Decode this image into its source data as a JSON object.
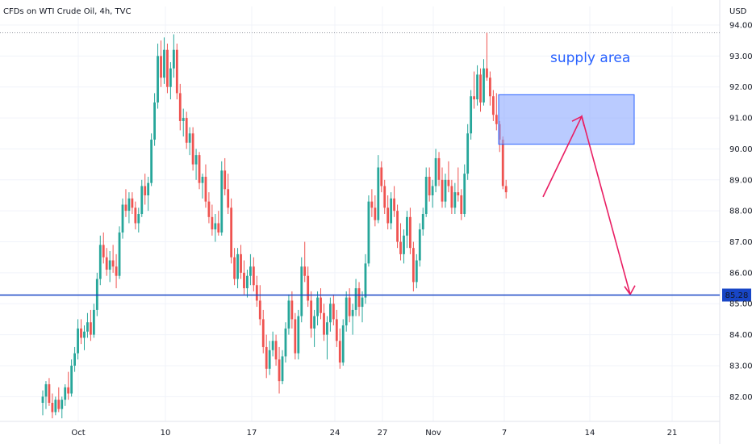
{
  "chart_data": {
    "type": "candlestick",
    "title": "CFDs on WTI Crude Oil, 4h, TVC",
    "currency": "USD",
    "ylim": [
      81.2,
      94.6
    ],
    "y_ticks": [
      82,
      83,
      84,
      85,
      86,
      87,
      88,
      89,
      90,
      91,
      92,
      93,
      94
    ],
    "y_tick_labels": [
      "82.00",
      "83.00",
      "84.00",
      "85.00",
      "86.00",
      "87.00",
      "88.00",
      "89.00",
      "90.00",
      "91.00",
      "92.00",
      "93.00",
      "94.00"
    ],
    "x_tick_labels": [
      "Oct",
      "10",
      "17",
      "24",
      "27",
      "Nov",
      "7",
      "14",
      "21"
    ],
    "grid": true,
    "colors": {
      "up": "#26a69a",
      "down": "#ef5350",
      "level": "#1846c6",
      "zone_fill": "#8ca9ff",
      "zone_border": "#2962ff",
      "arrow": "#e91e63",
      "text": "#131722",
      "annotation": "#2962ff"
    },
    "price_level": {
      "value": 85.28,
      "label": "85.28"
    },
    "high_marker": 93.75,
    "supply_zone": {
      "label": "supply area",
      "from": 90.15,
      "to": 91.75
    },
    "projection": [
      88.45,
      91.05,
      85.3
    ],
    "candles": [
      [
        81.8,
        82.2,
        81.4,
        82.0
      ],
      [
        82.0,
        82.5,
        81.6,
        82.4
      ],
      [
        82.4,
        82.6,
        81.7,
        81.8
      ],
      [
        81.8,
        82.1,
        81.3,
        81.5
      ],
      [
        81.5,
        82.0,
        81.4,
        81.9
      ],
      [
        81.9,
        82.3,
        81.5,
        81.6
      ],
      [
        81.6,
        82.0,
        81.3,
        81.9
      ],
      [
        81.9,
        82.4,
        81.7,
        82.3
      ],
      [
        82.3,
        82.8,
        81.9,
        82.1
      ],
      [
        82.1,
        83.2,
        82.0,
        83.0
      ],
      [
        83.0,
        83.6,
        82.8,
        83.4
      ],
      [
        83.4,
        84.5,
        83.2,
        84.2
      ],
      [
        84.2,
        84.5,
        83.7,
        83.9
      ],
      [
        83.9,
        84.3,
        83.5,
        84.1
      ],
      [
        84.1,
        84.7,
        83.9,
        84.4
      ],
      [
        84.4,
        84.8,
        83.8,
        84.0
      ],
      [
        84.0,
        85.0,
        83.9,
        84.8
      ],
      [
        84.8,
        86.0,
        84.6,
        85.8
      ],
      [
        85.8,
        87.2,
        85.6,
        86.9
      ],
      [
        86.9,
        87.3,
        86.3,
        86.5
      ],
      [
        86.5,
        86.8,
        85.9,
        86.1
      ],
      [
        86.1,
        86.7,
        85.7,
        86.4
      ],
      [
        86.4,
        86.9,
        86.0,
        86.2
      ],
      [
        86.2,
        86.6,
        85.5,
        85.9
      ],
      [
        85.9,
        87.5,
        85.8,
        87.3
      ],
      [
        87.3,
        88.4,
        87.1,
        88.2
      ],
      [
        88.2,
        88.7,
        87.8,
        88.0
      ],
      [
        88.0,
        88.6,
        87.6,
        88.4
      ],
      [
        88.4,
        88.6,
        87.9,
        88.1
      ],
      [
        88.1,
        88.3,
        87.4,
        87.6
      ],
      [
        87.6,
        88.1,
        87.3,
        87.9
      ],
      [
        87.9,
        89.0,
        87.8,
        88.8
      ],
      [
        88.8,
        89.2,
        88.2,
        88.5
      ],
      [
        88.5,
        89.1,
        88.0,
        88.9
      ],
      [
        88.9,
        90.5,
        88.8,
        90.3
      ],
      [
        90.3,
        91.8,
        90.1,
        91.5
      ],
      [
        91.5,
        93.4,
        91.3,
        93.0
      ],
      [
        93.0,
        93.5,
        92.0,
        92.3
      ],
      [
        92.3,
        93.6,
        92.1,
        93.2
      ],
      [
        93.2,
        93.4,
        91.8,
        92.0
      ],
      [
        92.0,
        92.8,
        91.6,
        92.6
      ],
      [
        92.6,
        93.7,
        92.3,
        93.2
      ],
      [
        93.2,
        93.4,
        91.6,
        91.8
      ],
      [
        91.8,
        92.1,
        90.6,
        90.9
      ],
      [
        90.9,
        91.3,
        90.4,
        91.0
      ],
      [
        91.0,
        91.2,
        90.0,
        90.2
      ],
      [
        90.2,
        90.7,
        89.8,
        90.5
      ],
      [
        90.5,
        90.7,
        89.3,
        89.5
      ],
      [
        89.5,
        90.0,
        89.0,
        89.8
      ],
      [
        89.8,
        89.9,
        88.7,
        88.9
      ],
      [
        88.9,
        89.2,
        88.4,
        89.1
      ],
      [
        89.1,
        89.5,
        88.1,
        88.3
      ],
      [
        88.3,
        88.6,
        87.6,
        87.8
      ],
      [
        87.8,
        88.2,
        87.2,
        87.4
      ],
      [
        87.4,
        87.9,
        87.0,
        87.6
      ],
      [
        87.6,
        88.0,
        87.2,
        87.3
      ],
      [
        87.3,
        89.6,
        87.2,
        89.3
      ],
      [
        89.3,
        89.7,
        88.5,
        88.7
      ],
      [
        88.7,
        89.2,
        87.9,
        88.1
      ],
      [
        88.1,
        88.4,
        86.3,
        86.5
      ],
      [
        86.5,
        86.8,
        85.6,
        85.8
      ],
      [
        85.8,
        86.8,
        85.5,
        86.6
      ],
      [
        86.6,
        86.9,
        85.8,
        86.0
      ],
      [
        86.0,
        86.4,
        85.3,
        85.5
      ],
      [
        85.5,
        86.1,
        85.2,
        85.9
      ],
      [
        85.9,
        86.6,
        85.6,
        86.2
      ],
      [
        86.2,
        86.5,
        85.4,
        85.6
      ],
      [
        85.6,
        85.9,
        84.9,
        85.1
      ],
      [
        85.1,
        85.6,
        84.3,
        84.5
      ],
      [
        84.5,
        84.8,
        83.4,
        83.6
      ],
      [
        83.6,
        84.0,
        82.6,
        82.9
      ],
      [
        82.9,
        83.8,
        82.7,
        83.5
      ],
      [
        83.5,
        84.1,
        83.3,
        83.8
      ],
      [
        83.8,
        84.0,
        83.0,
        83.2
      ],
      [
        83.2,
        83.6,
        82.1,
        82.5
      ],
      [
        82.5,
        83.5,
        82.4,
        83.3
      ],
      [
        83.3,
        84.4,
        83.1,
        84.2
      ],
      [
        84.2,
        85.3,
        84.0,
        85.1
      ],
      [
        85.1,
        85.4,
        84.2,
        84.5
      ],
      [
        84.5,
        84.7,
        83.2,
        83.4
      ],
      [
        83.4,
        84.8,
        83.2,
        84.6
      ],
      [
        84.6,
        86.5,
        84.4,
        86.2
      ],
      [
        86.2,
        87.0,
        85.7,
        85.9
      ],
      [
        85.9,
        86.2,
        84.9,
        85.1
      ],
      [
        85.1,
        85.4,
        83.9,
        84.2
      ],
      [
        84.2,
        84.8,
        83.6,
        84.6
      ],
      [
        84.6,
        85.4,
        84.3,
        85.2
      ],
      [
        85.2,
        85.5,
        84.5,
        84.7
      ],
      [
        84.7,
        85.0,
        83.8,
        84.0
      ],
      [
        84.0,
        84.6,
        83.2,
        84.4
      ],
      [
        84.4,
        85.2,
        84.1,
        85.0
      ],
      [
        85.0,
        85.3,
        84.3,
        84.5
      ],
      [
        84.5,
        84.8,
        83.6,
        83.8
      ],
      [
        83.8,
        84.2,
        82.9,
        83.1
      ],
      [
        83.1,
        84.5,
        83.0,
        84.3
      ],
      [
        84.3,
        85.4,
        84.1,
        85.2
      ],
      [
        85.2,
        85.5,
        84.4,
        84.6
      ],
      [
        84.6,
        85.0,
        84.0,
        84.8
      ],
      [
        84.8,
        85.8,
        84.6,
        85.5
      ],
      [
        85.5,
        85.7,
        84.6,
        84.9
      ],
      [
        84.9,
        85.4,
        84.4,
        85.2
      ],
      [
        85.2,
        86.6,
        85.0,
        86.3
      ],
      [
        86.3,
        88.5,
        86.2,
        88.3
      ],
      [
        88.3,
        88.7,
        87.8,
        88.1
      ],
      [
        88.1,
        88.5,
        87.5,
        87.7
      ],
      [
        87.7,
        89.8,
        87.6,
        89.4
      ],
      [
        89.4,
        89.6,
        88.6,
        88.8
      ],
      [
        88.8,
        89.0,
        87.9,
        88.1
      ],
      [
        88.1,
        88.5,
        87.4,
        87.6
      ],
      [
        87.6,
        88.6,
        87.4,
        88.4
      ],
      [
        88.4,
        88.8,
        87.8,
        88.0
      ],
      [
        88.0,
        88.2,
        86.8,
        87.0
      ],
      [
        87.0,
        87.6,
        86.4,
        86.6
      ],
      [
        86.6,
        87.4,
        86.3,
        87.2
      ],
      [
        87.2,
        88.0,
        86.8,
        87.8
      ],
      [
        87.8,
        88.1,
        86.6,
        86.8
      ],
      [
        86.8,
        87.0,
        85.4,
        85.7
      ],
      [
        85.7,
        86.6,
        85.5,
        86.4
      ],
      [
        86.4,
        87.6,
        86.2,
        87.4
      ],
      [
        87.4,
        88.1,
        87.2,
        87.9
      ],
      [
        87.9,
        89.4,
        87.8,
        89.1
      ],
      [
        89.1,
        89.4,
        88.3,
        88.5
      ],
      [
        88.5,
        89.0,
        88.1,
        88.8
      ],
      [
        88.8,
        90.0,
        88.6,
        89.7
      ],
      [
        89.7,
        89.9,
        88.8,
        89.0
      ],
      [
        89.0,
        89.4,
        88.1,
        88.3
      ],
      [
        88.3,
        89.2,
        88.1,
        89.0
      ],
      [
        89.0,
        89.6,
        88.6,
        88.8
      ],
      [
        88.8,
        89.0,
        87.9,
        88.1
      ],
      [
        88.1,
        88.9,
        87.9,
        88.6
      ],
      [
        88.6,
        89.4,
        88.3,
        88.5
      ],
      [
        88.5,
        88.7,
        87.7,
        87.9
      ],
      [
        87.9,
        89.5,
        87.8,
        89.2
      ],
      [
        89.2,
        90.8,
        89.0,
        90.5
      ],
      [
        90.5,
        91.9,
        90.3,
        91.7
      ],
      [
        91.7,
        92.5,
        91.3,
        91.6
      ],
      [
        91.6,
        92.7,
        91.4,
        92.4
      ],
      [
        92.4,
        92.6,
        91.2,
        91.5
      ],
      [
        91.5,
        92.9,
        91.4,
        92.6
      ],
      [
        92.6,
        93.75,
        92.2,
        92.3
      ],
      [
        92.3,
        92.5,
        91.4,
        91.7
      ],
      [
        91.7,
        91.9,
        90.9,
        91.1
      ],
      [
        91.1,
        91.8,
        90.6,
        90.8
      ],
      [
        90.8,
        90.9,
        89.9,
        90.3
      ],
      [
        90.3,
        90.4,
        88.7,
        88.8
      ],
      [
        88.8,
        89.0,
        88.4,
        88.6
      ]
    ]
  }
}
